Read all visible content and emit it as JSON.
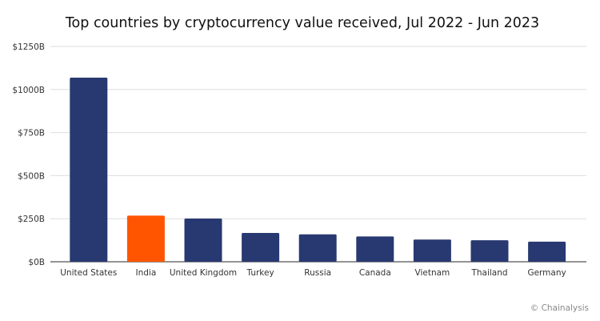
{
  "chart_data": {
    "type": "bar",
    "title": "Top countries by cryptocurrency value received, Jul 2022 - Jun 2023",
    "xlabel": "",
    "ylabel": "",
    "categories": [
      "United States",
      "India",
      "United Kingdom",
      "Turkey",
      "Russia",
      "Canada",
      "Vietnam",
      "Thailand",
      "Germany"
    ],
    "values": [
      1069,
      268,
      251,
      167,
      159,
      147,
      129,
      125,
      117
    ],
    "unit": "$B",
    "ylim": [
      0,
      1250
    ],
    "yticks": [
      0,
      250,
      500,
      750,
      1000,
      1250
    ],
    "ytick_labels": [
      "$0B",
      "$250B",
      "$500B",
      "$750B",
      "$1000B",
      "$1250B"
    ],
    "grid": true,
    "legend": "none",
    "colors": {
      "default": "#283971",
      "highlight": "#FF5500"
    },
    "highlight_category": "India"
  },
  "credit": "© Chainalysis"
}
